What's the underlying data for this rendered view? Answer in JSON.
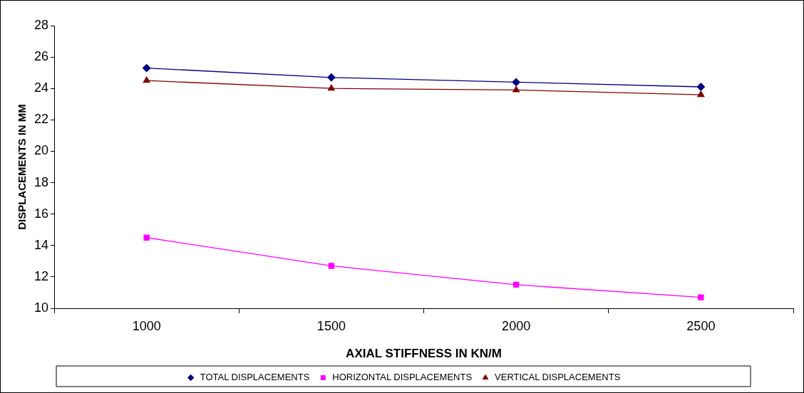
{
  "chart_data": {
    "type": "line",
    "xlabel": "AXIAL STIFFNESS IN KN/M",
    "ylabel": "DISPLACEMENTS IN MM",
    "categories": [
      "1000",
      "1500",
      "2000",
      "2500"
    ],
    "series": [
      {
        "name": "TOTAL DISPLACEMENTS",
        "color": "#000080",
        "marker": "diamond",
        "values": [
          25.3,
          24.7,
          24.4,
          24.1
        ]
      },
      {
        "name": "HORIZONTAL DISPLACEMENTS",
        "color": "#ff00ff",
        "marker": "square",
        "values": [
          14.5,
          12.7,
          11.5,
          10.7
        ]
      },
      {
        "name": "VERTICAL DISPLACEMENTS",
        "color": "#800000",
        "marker": "triangle",
        "values": [
          24.5,
          24.0,
          23.9,
          23.6
        ]
      }
    ],
    "ylim": [
      10,
      28
    ],
    "yticks": [
      10,
      12,
      14,
      16,
      18,
      20,
      22,
      24,
      26,
      28
    ],
    "grid": false,
    "legend": "bottom",
    "line_style": "solid"
  }
}
